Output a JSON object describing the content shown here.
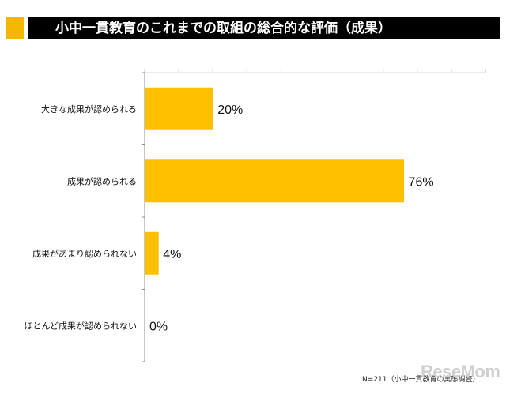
{
  "header": {
    "title": "小中一貫教育のこれまでの取組の総合的な評価（成果）"
  },
  "chart_data": {
    "type": "bar",
    "orientation": "horizontal",
    "categories": [
      "大きな成果が認められる",
      "成果が認められる",
      "成果があまり認められない",
      "ほとんど成果が認められない"
    ],
    "values": [
      20,
      76,
      4,
      0
    ],
    "value_labels": [
      "20%",
      "76%",
      "4%",
      "0%"
    ],
    "xlim": [
      0,
      100
    ],
    "grid": false,
    "bar_color": "#ffc000"
  },
  "footnote": "N=211（小中一貫教育の実態調査）",
  "watermark": "ReseMom",
  "colors": {
    "accent": "#f5b800",
    "title_bg": "#000000",
    "title_text": "#ffffff"
  }
}
